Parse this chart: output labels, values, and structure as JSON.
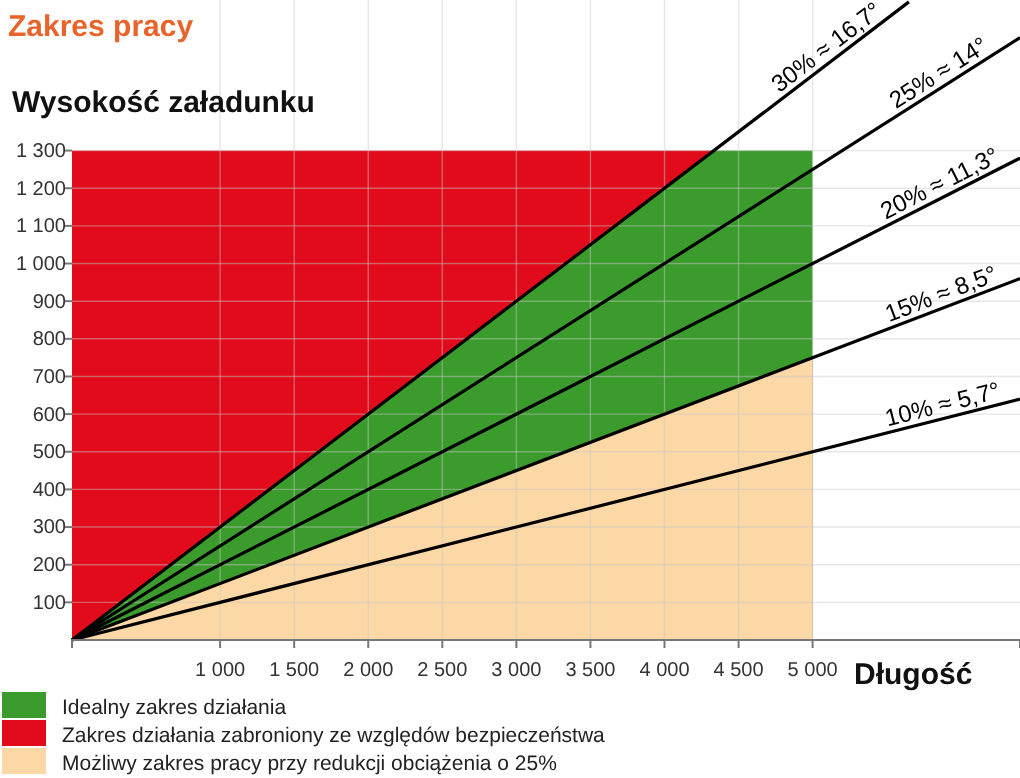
{
  "chart_data": {
    "type": "area",
    "title": "Zakres pracy",
    "ylabel": "Wysokość załadunku",
    "xlabel": "Długość",
    "grid": true,
    "legend": "bottom left",
    "xlim": [
      0,
      6400
    ],
    "ylim": [
      0,
      1700
    ],
    "xticks": [
      {
        "value": 1000,
        "label": "1 000"
      },
      {
        "value": 1500,
        "label": "1 500"
      },
      {
        "value": 2000,
        "label": "2 000"
      },
      {
        "value": 2500,
        "label": "2 500"
      },
      {
        "value": 3000,
        "label": "3 000"
      },
      {
        "value": 3500,
        "label": "3 500"
      },
      {
        "value": 4000,
        "label": "4 000"
      },
      {
        "value": 4500,
        "label": "4 500"
      },
      {
        "value": 5000,
        "label": "5 000"
      }
    ],
    "yticks": [
      100,
      200,
      300,
      400,
      500,
      600,
      700,
      800,
      900,
      {
        "value": 1000,
        "label": "1 000"
      },
      {
        "value": 1100,
        "label": "1 100"
      },
      {
        "value": 1200,
        "label": "1 200"
      },
      {
        "value": 1300,
        "label": "1 300"
      }
    ],
    "series": [
      {
        "name": "Idealny zakres działania",
        "color": "#3b9b2d",
        "x": [
          0,
          4333,
          5000
        ],
        "values": [
          0,
          1300,
          1300
        ]
      },
      {
        "name": "Zakres działania zabroniony ze względów bezpieczeństwa",
        "color": "#e20b1b",
        "x": [
          0,
          4333
        ],
        "values": [
          1300,
          1300
        ]
      },
      {
        "name": "Możliwy zakres pracy przy redukcji obciążenia o 25%",
        "color": "#fbd8a6",
        "x": [
          0,
          5000
        ],
        "values": [
          0,
          750
        ]
      },
      {
        "type": "line",
        "name": "30% ≈ 16,7°",
        "color": "#000000",
        "x": [
          0,
          5650
        ],
        "values": [
          0,
          1695
        ]
      },
      {
        "type": "line",
        "name": "25% ≈ 14°",
        "color": "#000000",
        "x": [
          0,
          6400
        ],
        "values": [
          0,
          1600
        ]
      },
      {
        "type": "line",
        "name": "20% ≈ 11,3°",
        "color": "#000000",
        "x": [
          0,
          6400
        ],
        "values": [
          0,
          1280
        ]
      },
      {
        "type": "line",
        "name": "15% ≈ 8,5°",
        "color": "#000000",
        "x": [
          0,
          6400
        ],
        "values": [
          0,
          960
        ]
      },
      {
        "type": "line",
        "name": "10% ≈ 5,7°",
        "color": "#000000",
        "x": [
          0,
          6400
        ],
        "values": [
          0,
          640
        ]
      }
    ]
  }
}
